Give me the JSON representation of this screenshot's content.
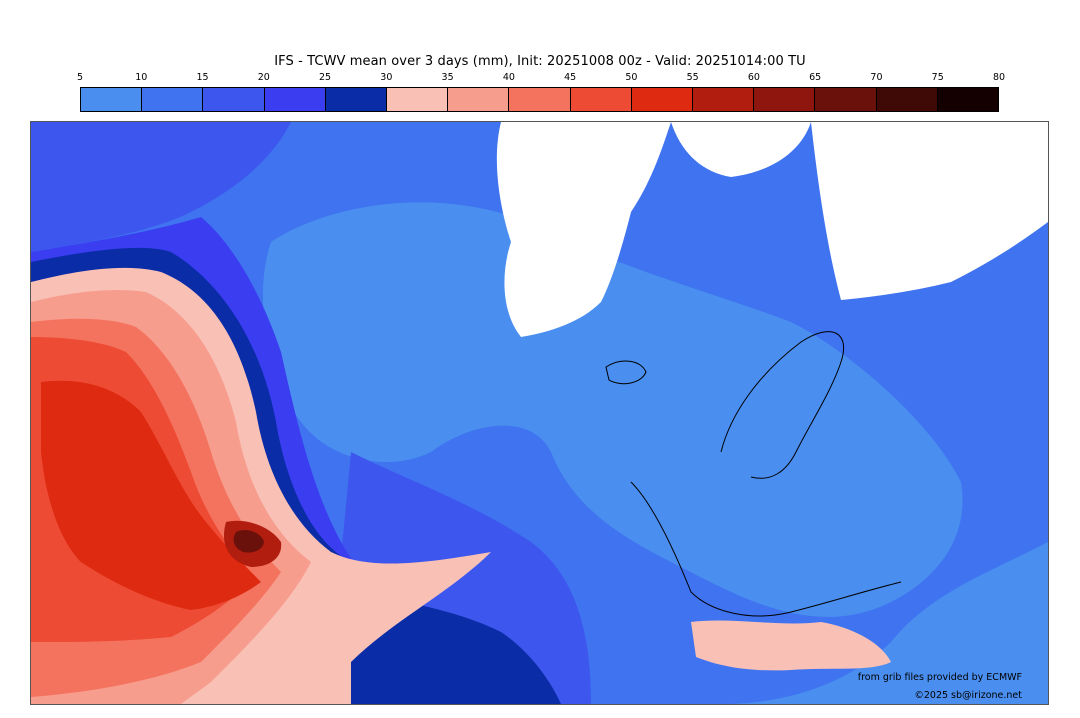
{
  "title": "IFS - TCWV mean over 3 days (mm), Init: 20251008 00z - Valid: 20251014:00 TU",
  "colorbar": {
    "ticks": [
      "5",
      "10",
      "15",
      "20",
      "25",
      "30",
      "35",
      "40",
      "45",
      "50",
      "55",
      "60",
      "65",
      "70",
      "75",
      "80"
    ],
    "colors": [
      "#4a8ff0",
      "#3f73f0",
      "#3d57ee",
      "#3b3df0",
      "#0a2ca6",
      "#f9c0b6",
      "#f79d8e",
      "#f4735f",
      "#ee4b34",
      "#dd2a10",
      "#b11d0e",
      "#8f160e",
      "#6a110c",
      "#3f0906",
      "#140000"
    ]
  },
  "credits": {
    "source": "from grib files provided by ECMWF",
    "copyright": "©2025 sb@irizone.net"
  }
}
